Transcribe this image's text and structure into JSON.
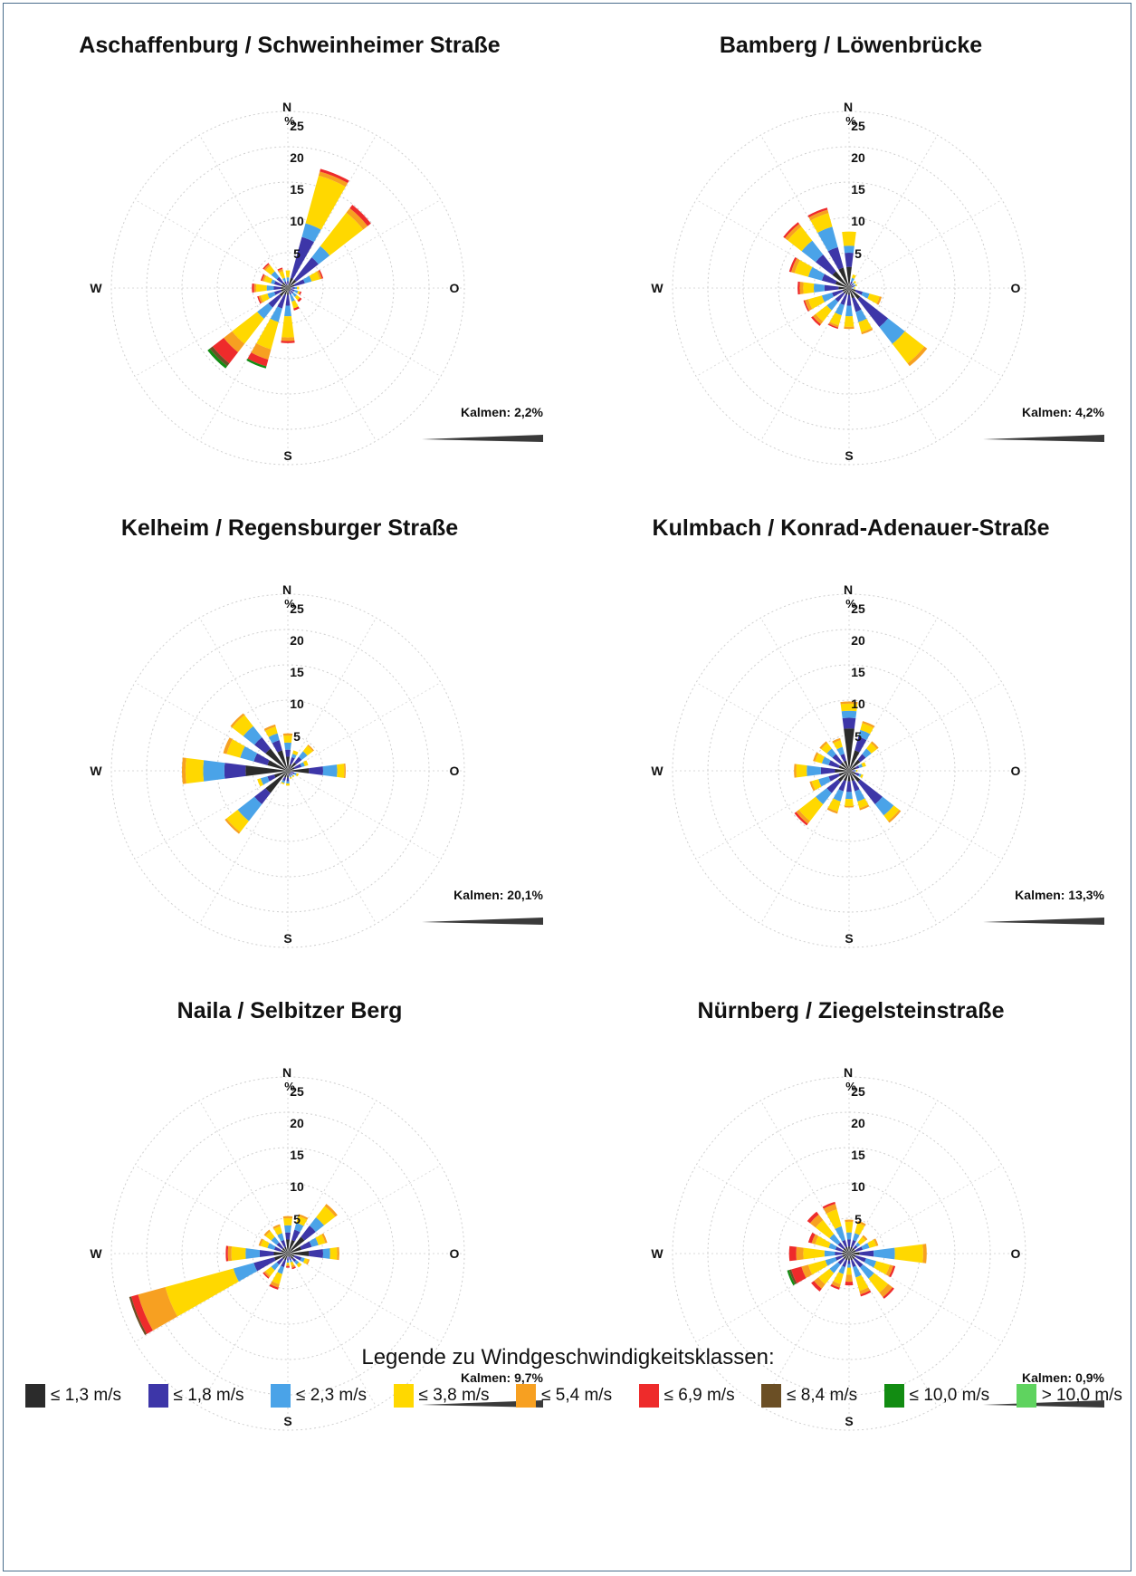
{
  "legend": {
    "title": "Legende zu Windgeschwindigkeitsklassen:",
    "classes": [
      {
        "label": "≤ 1,3 m/s",
        "color": "#2b2b2b"
      },
      {
        "label": "≤ 1,8 m/s",
        "color": "#3d36a8"
      },
      {
        "label": "≤ 2,3 m/s",
        "color": "#4aa3e8"
      },
      {
        "label": "≤ 3,8 m/s",
        "color": "#ffd800"
      },
      {
        "label": "≤ 5,4 m/s",
        "color": "#f7a021"
      },
      {
        "label": "≤ 6,9 m/s",
        "color": "#ee2b2b"
      },
      {
        "label": "≤ 8,4 m/s",
        "color": "#6b4f25"
      },
      {
        "label": "≤ 10,0 m/s",
        "color": "#128c12"
      },
      {
        "label": "> 10,0 m/s",
        "color": "#5fd35f"
      }
    ]
  },
  "chart_data": [
    {
      "type": "wind-rose",
      "title": "Aschaffenburg / Schweinheimer Straße",
      "directions": [
        "N",
        "NNO",
        "NO",
        "ONO",
        "O",
        "OSO",
        "SO",
        "SSO",
        "S",
        "SSW",
        "SW",
        "WSW",
        "W",
        "WNW",
        "NW",
        "NNW"
      ],
      "compass_labels": {
        "n": "N",
        "e": "O",
        "s": "S",
        "w": "W"
      },
      "radial_unit": "%",
      "radial_ticks": [
        5,
        10,
        15,
        20,
        25
      ],
      "rlim": [
        0,
        25
      ],
      "calm_label": "Kalmen: 2,2%",
      "segments": [
        [
          0.5,
          0.5,
          0.5,
          1,
          0,
          0,
          0,
          0,
          0
        ],
        [
          1.5,
          6,
          2,
          7,
          0.6,
          0.4,
          0,
          0,
          0
        ],
        [
          1.5,
          4,
          2,
          6,
          0.8,
          0.6,
          0,
          0,
          0
        ],
        [
          1,
          1.5,
          1,
          1.2,
          0.3,
          0.2,
          0,
          0,
          0
        ],
        [
          0.5,
          0.5,
          0.3,
          0.3,
          0,
          0,
          0,
          0,
          0
        ],
        [
          0.5,
          0.5,
          0.5,
          0.3,
          0,
          0.2,
          0,
          0,
          0
        ],
        [
          0.5,
          0.5,
          0.6,
          0.6,
          0,
          0.3,
          0,
          0,
          0
        ],
        [
          0.5,
          0.5,
          1,
          1,
          0,
          0.3,
          0,
          0,
          0
        ],
        [
          1,
          1.5,
          1.5,
          3,
          0.5,
          0.3,
          0,
          0,
          0
        ],
        [
          1,
          2,
          2,
          4,
          1.5,
          1,
          0,
          0.3,
          0
        ],
        [
          1.5,
          2,
          2,
          4.5,
          1.5,
          2,
          0.5,
          0.4,
          0
        ],
        [
          1,
          1,
          1,
          1,
          0.3,
          0.2,
          0,
          0,
          0
        ],
        [
          1,
          1,
          1,
          1.5,
          0.3,
          0.3,
          0,
          0,
          0
        ],
        [
          1,
          1,
          0.5,
          1,
          0.3,
          0.2,
          0,
          0,
          0
        ],
        [
          1,
          1,
          1,
          1,
          0.3,
          0.2,
          0,
          0,
          0
        ],
        [
          0.5,
          0.5,
          0.5,
          1,
          0.3,
          0.2,
          0,
          0,
          0
        ]
      ]
    },
    {
      "type": "wind-rose",
      "title": "Bamberg / Löwenbrücke",
      "directions": [
        "N",
        "NNO",
        "NO",
        "ONO",
        "O",
        "OSO",
        "SO",
        "SSO",
        "S",
        "SSW",
        "SW",
        "WSW",
        "W",
        "WNW",
        "NW",
        "NNW"
      ],
      "compass_labels": {
        "n": "N",
        "e": "O",
        "s": "S",
        "w": "W"
      },
      "radial_unit": "%",
      "radial_ticks": [
        5,
        10,
        15,
        20,
        25
      ],
      "rlim": [
        0,
        25
      ],
      "calm_label": "Kalmen: 4,2%",
      "segments": [
        [
          3,
          2,
          1,
          2,
          0,
          0,
          0,
          0,
          0
        ],
        [
          0.5,
          0.5,
          0.5,
          0.5,
          0,
          0,
          0,
          0,
          0
        ],
        [
          0.5,
          0.3,
          0.2,
          0.3,
          0,
          0,
          0,
          0,
          0
        ],
        [
          0.5,
          0.3,
          0.2,
          0.2,
          0,
          0,
          0,
          0,
          0
        ],
        [
          0.3,
          0.2,
          0.2,
          0.2,
          0,
          0,
          0,
          0,
          0
        ],
        [
          1,
          1,
          1,
          1.5,
          0.3,
          0,
          0,
          0,
          0
        ],
        [
          2,
          5,
          3,
          3.5,
          0.5,
          0,
          0,
          0,
          0
        ],
        [
          1.5,
          2,
          1.5,
          1.5,
          0.3,
          0,
          0,
          0,
          0
        ],
        [
          1,
          1.5,
          1.5,
          1.5,
          0.3,
          0,
          0,
          0,
          0
        ],
        [
          1,
          1.5,
          1.5,
          1.5,
          0.3,
          0.2,
          0,
          0,
          0
        ],
        [
          1,
          1.5,
          1.5,
          2,
          0.5,
          0.3,
          0,
          0,
          0
        ],
        [
          1,
          1.5,
          1.5,
          2,
          0.5,
          0.2,
          0,
          0,
          0
        ],
        [
          1.5,
          2,
          1.5,
          1.5,
          0.5,
          0.3,
          0,
          0,
          0
        ],
        [
          2,
          2,
          2,
          2,
          0.5,
          0.3,
          0,
          0,
          0
        ],
        [
          3,
          3,
          2.5,
          2.5,
          0.5,
          0.3,
          0,
          0,
          0
        ],
        [
          3,
          3,
          3,
          2,
          0.5,
          0.3,
          0,
          0,
          0
        ]
      ]
    },
    {
      "type": "wind-rose",
      "title": "Kelheim / Regensburger Straße",
      "directions": [
        "N",
        "NNO",
        "NO",
        "ONO",
        "O",
        "OSO",
        "SO",
        "SSO",
        "S",
        "SSW",
        "SW",
        "WSW",
        "W",
        "WNW",
        "NW",
        "NNW"
      ],
      "compass_labels": {
        "n": "N",
        "e": "O",
        "s": "S",
        "w": "W"
      },
      "radial_unit": "%",
      "radial_ticks": [
        5,
        10,
        15,
        20,
        25
      ],
      "rlim": [
        0,
        25
      ],
      "calm_label": "Kalmen: 20,1%",
      "segments": [
        [
          2,
          1,
          1,
          1,
          0.3,
          0,
          0,
          0,
          0
        ],
        [
          1,
          1,
          0.5,
          0.5,
          0,
          0,
          0,
          0,
          0
        ],
        [
          1.5,
          1,
          1,
          1,
          0.2,
          0,
          0,
          0,
          0
        ],
        [
          1,
          1,
          0.5,
          0.5,
          0,
          0,
          0,
          0,
          0
        ],
        [
          3,
          2,
          2,
          1,
          0.2,
          0,
          0,
          0,
          0
        ],
        [
          0.5,
          0.5,
          0.3,
          0.3,
          0,
          0,
          0,
          0,
          0
        ],
        [
          0.5,
          0.3,
          0.2,
          0.2,
          0,
          0,
          0,
          0,
          0
        ],
        [
          0.5,
          0.3,
          0.2,
          0.2,
          0,
          0,
          0,
          0,
          0
        ],
        [
          1,
          0.5,
          0.3,
          0.3,
          0,
          0,
          0,
          0,
          0
        ],
        [
          1,
          0.5,
          0.3,
          0.2,
          0,
          0,
          0,
          0,
          0
        ],
        [
          4,
          2,
          3,
          2,
          0.3,
          0,
          0,
          0,
          0
        ],
        [
          2,
          1,
          1,
          0.5,
          0,
          0,
          0,
          0,
          0
        ],
        [
          6,
          3,
          3,
          2.5,
          0.5,
          0,
          0,
          0,
          0
        ],
        [
          3,
          2,
          2,
          2,
          0.5,
          0,
          0,
          0,
          0
        ],
        [
          4,
          2,
          2,
          2,
          0.3,
          0,
          0,
          0,
          0
        ],
        [
          3,
          1.5,
          1,
          1,
          0.3,
          0,
          0,
          0,
          0
        ]
      ]
    },
    {
      "type": "wind-rose",
      "title": "Kulmbach / Konrad-Adenauer-Straße",
      "directions": [
        "N",
        "NNO",
        "NO",
        "ONO",
        "O",
        "OSO",
        "SO",
        "SSO",
        "S",
        "SSW",
        "SW",
        "WSW",
        "W",
        "WNW",
        "NW",
        "NNW"
      ],
      "compass_labels": {
        "n": "N",
        "e": "O",
        "s": "S",
        "w": "W"
      },
      "radial_unit": "%",
      "radial_ticks": [
        5,
        10,
        15,
        20,
        25
      ],
      "rlim": [
        0,
        25
      ],
      "calm_label": "Kalmen: 13,3%",
      "segments": [
        [
          6,
          1.5,
          1,
          1,
          0.3,
          0,
          0,
          0,
          0
        ],
        [
          3,
          2,
          1,
          1,
          0.3,
          0,
          0,
          0,
          0
        ],
        [
          2,
          1,
          1,
          1,
          0.3,
          0,
          0,
          0,
          0
        ],
        [
          1,
          0.5,
          0.5,
          0.5,
          0,
          0,
          0,
          0,
          0
        ],
        [
          0.5,
          0.3,
          0.2,
          0.2,
          0,
          0,
          0,
          0,
          0
        ],
        [
          1,
          0.5,
          0.3,
          0.3,
          0,
          0,
          0,
          0,
          0
        ],
        [
          2,
          4,
          2,
          1,
          0.3,
          0,
          0,
          0,
          0
        ],
        [
          1.5,
          1.5,
          1.5,
          1,
          0.3,
          0,
          0,
          0,
          0
        ],
        [
          1.5,
          1.5,
          1,
          1,
          0.2,
          0,
          0,
          0,
          0
        ],
        [
          1.5,
          1.5,
          1.5,
          1.5,
          0.3,
          0,
          0,
          0,
          0
        ],
        [
          2,
          2,
          2,
          3,
          0.5,
          0.3,
          0,
          0,
          0
        ],
        [
          1.5,
          1.5,
          1.5,
          1,
          0.3,
          0,
          0,
          0,
          0
        ],
        [
          2,
          2,
          2,
          1.5,
          0.3,
          0,
          0,
          0,
          0
        ],
        [
          1.5,
          1.5,
          1,
          1,
          0.3,
          0,
          0,
          0,
          0
        ],
        [
          1.5,
          1.5,
          1,
          1,
          0.3,
          0,
          0,
          0,
          0
        ],
        [
          1.5,
          1,
          1,
          1,
          0.3,
          0,
          0,
          0,
          0
        ]
      ]
    },
    {
      "type": "wind-rose",
      "title": "Naila / Selbitzer Berg",
      "directions": [
        "N",
        "NNO",
        "NO",
        "ONO",
        "O",
        "OSO",
        "SO",
        "SSO",
        "S",
        "SSW",
        "SW",
        "WSW",
        "W",
        "WNW",
        "NW",
        "NNW"
      ],
      "compass_labels": {
        "n": "N",
        "e": "O",
        "s": "S",
        "w": "W"
      },
      "radial_unit": "%",
      "radial_ticks": [
        5,
        10,
        15,
        20,
        25
      ],
      "rlim": [
        0,
        25
      ],
      "calm_label": "Kalmen: 9,7%",
      "segments": [
        [
          2,
          1,
          1,
          1,
          0.3,
          0,
          0,
          0,
          0
        ],
        [
          2,
          1.5,
          1,
          1,
          0.3,
          0,
          0,
          0,
          0
        ],
        [
          3,
          2,
          1.5,
          2,
          0.4,
          0,
          0,
          0,
          0
        ],
        [
          2,
          1.5,
          1,
          1,
          0.3,
          0,
          0,
          0,
          0
        ],
        [
          3,
          2,
          1,
          1,
          0.3,
          0,
          0,
          0,
          0
        ],
        [
          1,
          1,
          0.5,
          0.5,
          0.2,
          0,
          0,
          0,
          0
        ],
        [
          1,
          0.5,
          0.5,
          0.5,
          0,
          0,
          0,
          0,
          0
        ],
        [
          0.5,
          0.5,
          0.3,
          0.5,
          0.3,
          0.2,
          0,
          0,
          0
        ],
        [
          0.5,
          0.5,
          0.3,
          0.3,
          0.2,
          0.2,
          0,
          0,
          0
        ],
        [
          1,
          1,
          1,
          1.5,
          0.5,
          0.3,
          0,
          0,
          0
        ],
        [
          1,
          1,
          1,
          1,
          0.3,
          0.2,
          0,
          0,
          0
        ],
        [
          2,
          3,
          3,
          10,
          4,
          1,
          0.3,
          0,
          0
        ],
        [
          2,
          2,
          2,
          2,
          0.5,
          0.3,
          0,
          0,
          0
        ],
        [
          1,
          1,
          1,
          1,
          0.3,
          0,
          0,
          0,
          0
        ],
        [
          1,
          1,
          1,
          1,
          0.3,
          0,
          0,
          0,
          0
        ],
        [
          1,
          1,
          1,
          1,
          0.3,
          0,
          0,
          0,
          0
        ]
      ]
    },
    {
      "type": "wind-rose",
      "title": "Nürnberg / Ziegelsteinstraße",
      "directions": [
        "N",
        "NNO",
        "NO",
        "ONO",
        "O",
        "OSO",
        "SO",
        "SSO",
        "S",
        "SSW",
        "SW",
        "WSW",
        "W",
        "WNW",
        "NW",
        "NNW"
      ],
      "compass_labels": {
        "n": "N",
        "e": "O",
        "s": "S",
        "w": "W"
      },
      "radial_unit": "%",
      "radial_ticks": [
        5,
        10,
        15,
        20,
        25
      ],
      "rlim": [
        0,
        25
      ],
      "calm_label": "Kalmen: 0,9%",
      "segments": [
        [
          1,
          1,
          1,
          1.5,
          0.3,
          0,
          0,
          0,
          0
        ],
        [
          1,
          1,
          1,
          1.5,
          0.3,
          0,
          0,
          0,
          0
        ],
        [
          1,
          0.5,
          0.5,
          1,
          0.3,
          0,
          0,
          0,
          0
        ],
        [
          1,
          1,
          1,
          1,
          0.3,
          0,
          0,
          0,
          0
        ],
        [
          1.5,
          2,
          3,
          4,
          0.5,
          0,
          0,
          0,
          0
        ],
        [
          1,
          1.5,
          1.5,
          2,
          0.5,
          0.3,
          0,
          0,
          0
        ],
        [
          1,
          1.5,
          2,
          2.5,
          0.8,
          0.3,
          0,
          0,
          0
        ],
        [
          1,
          1,
          1.5,
          2,
          0.5,
          0.3,
          0,
          0,
          0
        ],
        [
          1,
          0.5,
          0.5,
          1,
          1,
          0.5,
          0,
          0,
          0
        ],
        [
          1,
          1,
          1,
          1.5,
          0.5,
          0.3,
          0,
          0,
          0
        ],
        [
          1,
          1,
          1.5,
          2,
          0.8,
          0.5,
          0,
          0,
          0
        ],
        [
          1,
          1,
          1.5,
          2.5,
          1,
          1.5,
          0.3,
          0.3,
          0
        ],
        [
          1,
          1,
          1.5,
          3,
          1,
          1,
          0,
          0,
          0
        ],
        [
          1,
          1,
          1,
          2,
          0.5,
          0.5,
          0,
          0,
          0
        ],
        [
          1,
          1,
          1.5,
          2.5,
          1,
          0.5,
          0,
          0,
          0
        ],
        [
          1,
          1,
          2,
          2.5,
          0.8,
          0.3,
          0,
          0,
          0
        ]
      ]
    }
  ]
}
